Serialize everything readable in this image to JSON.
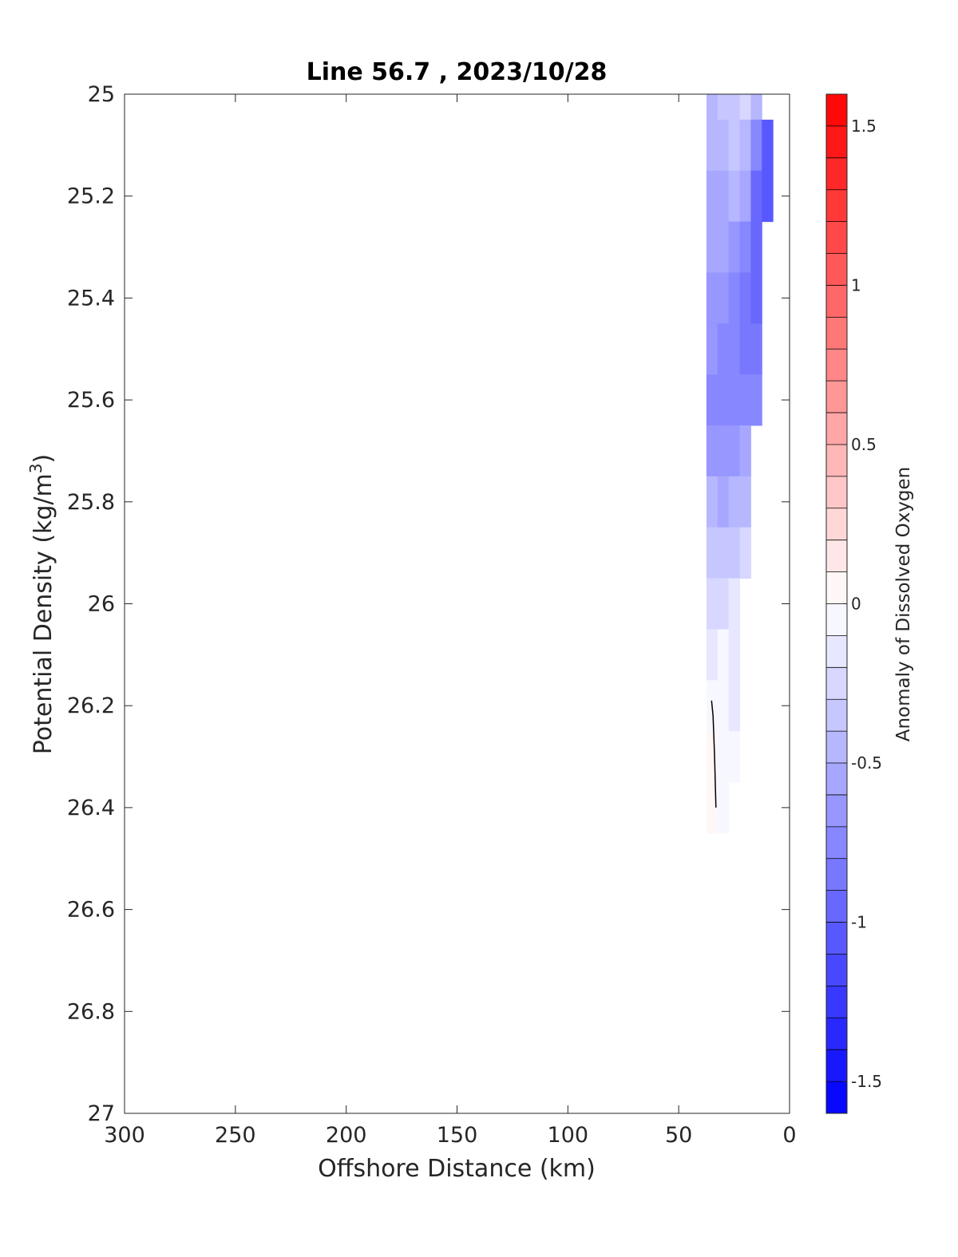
{
  "chart_data": {
    "type": "heatmap",
    "title": "Line 56.7 , 2023/10/28",
    "xlabel": "Offshore Distance (km)",
    "ylabel": "Potential Density (kg/m3)",
    "ylabel_main": "Potential Density (kg/m",
    "ylabel_sup": "3",
    "ylabel_close": ")",
    "colorbar_label": "Anomaly of Dissolved Oxygen",
    "xlim": [
      300,
      0
    ],
    "ylim": [
      25,
      27
    ],
    "x_reversed": true,
    "y_reversed": true,
    "x_ticks": [
      300,
      250,
      200,
      150,
      100,
      50,
      0
    ],
    "y_ticks": [
      25,
      25.2,
      25.4,
      25.6,
      25.8,
      26,
      26.2,
      26.4,
      26.6,
      26.8,
      27
    ],
    "y_tick_labels": [
      "25",
      "25.2",
      "25.4",
      "25.6",
      "25.8",
      "26",
      "26.2",
      "26.4",
      "26.6",
      "26.8",
      "27"
    ],
    "colorbar_range": [
      -1.6,
      1.6
    ],
    "colorbar_step": 0.1,
    "colorbar_ticks": [
      1.5,
      1,
      0.5,
      0,
      -0.5,
      -1,
      -1.5
    ],
    "colorbar_tick_labels": [
      "1.5",
      "1",
      "0.5",
      "0",
      "-0.5",
      "-1",
      "-1.5"
    ],
    "colormap": {
      "negative": "#0000ff",
      "zero": "#ffffff",
      "positive": "#ff0000"
    },
    "x": [
      35,
      30,
      25,
      20,
      15,
      10
    ],
    "y": [
      25.0,
      25.1,
      25.2,
      25.3,
      25.4,
      25.5,
      25.6,
      25.7,
      25.8,
      25.9,
      26.0,
      26.1,
      26.2,
      26.3,
      26.4
    ],
    "values": [
      [
        -0.45,
        -0.38,
        -0.32,
        -0.3,
        -0.45,
        null
      ],
      [
        -0.5,
        -0.45,
        -0.4,
        -0.45,
        -0.8,
        -1.05
      ],
      [
        -0.55,
        -0.52,
        -0.5,
        -0.6,
        -0.95,
        -1.1
      ],
      [
        -0.6,
        -0.6,
        -0.62,
        -0.75,
        -0.95,
        null
      ],
      [
        -0.65,
        -0.68,
        -0.75,
        -0.85,
        -0.95,
        null
      ],
      [
        -0.7,
        -0.72,
        -0.78,
        -0.85,
        -0.88,
        null
      ],
      [
        -0.72,
        -0.75,
        -0.78,
        -0.8,
        -0.8,
        null
      ],
      [
        -0.65,
        -0.65,
        -0.62,
        -0.55,
        null,
        null
      ],
      [
        -0.5,
        -0.52,
        -0.5,
        -0.45,
        null,
        null
      ],
      [
        -0.4,
        -0.38,
        -0.35,
        -0.3,
        null,
        null
      ],
      [
        -0.3,
        -0.22,
        -0.2,
        null,
        null,
        null
      ],
      [
        -0.12,
        -0.1,
        -0.15,
        null,
        null,
        null
      ],
      [
        -0.02,
        -0.05,
        -0.12,
        null,
        null,
        null
      ],
      [
        0.03,
        -0.04,
        -0.1,
        null,
        null,
        null
      ],
      [
        0.02,
        -0.02,
        null,
        null,
        null,
        null
      ]
    ],
    "zero_contour": [
      [
        35.2,
        26.19
      ],
      [
        34.5,
        26.22
      ],
      [
        33.8,
        26.3
      ],
      [
        33.2,
        26.4
      ]
    ],
    "zero_contour_color": "#000000",
    "grid": false
  }
}
